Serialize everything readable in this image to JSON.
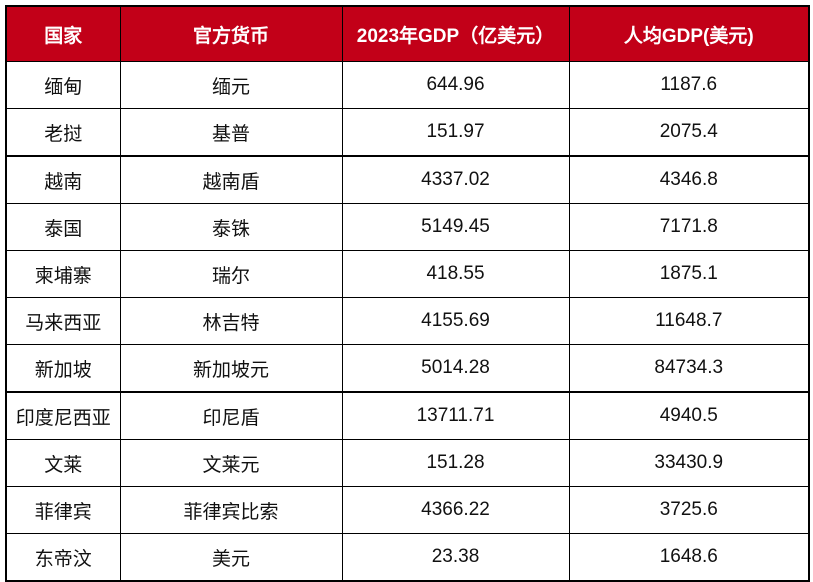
{
  "header_color": "#C20018",
  "columns": [
    "国家",
    "官方货币",
    "2023年GDP（亿美元）",
    "人均GDP(美元)"
  ],
  "rows": [
    [
      "缅甸",
      "缅元",
      "644.96",
      "1187.6"
    ],
    [
      "老挝",
      "基普",
      "151.97",
      "2075.4"
    ],
    [
      "越南",
      "越南盾",
      "4337.02",
      "4346.8"
    ],
    [
      "泰国",
      "泰铢",
      "5149.45",
      "7171.8"
    ],
    [
      "柬埔寨",
      "瑞尔",
      "418.55",
      "1875.1"
    ],
    [
      "马来西亚",
      "林吉特",
      "4155.69",
      "11648.7"
    ],
    [
      "新加坡",
      "新加坡元",
      "5014.28",
      "84734.3"
    ],
    [
      "印度尼西亚",
      "印尼盾",
      "13711.71",
      "4940.5"
    ],
    [
      "文莱",
      "文莱元",
      "151.28",
      "33430.9"
    ],
    [
      "菲律宾",
      "菲律宾比索",
      "4366.22",
      "3725.6"
    ],
    [
      "东帝汶",
      "美元",
      "23.38",
      "1648.6"
    ]
  ]
}
